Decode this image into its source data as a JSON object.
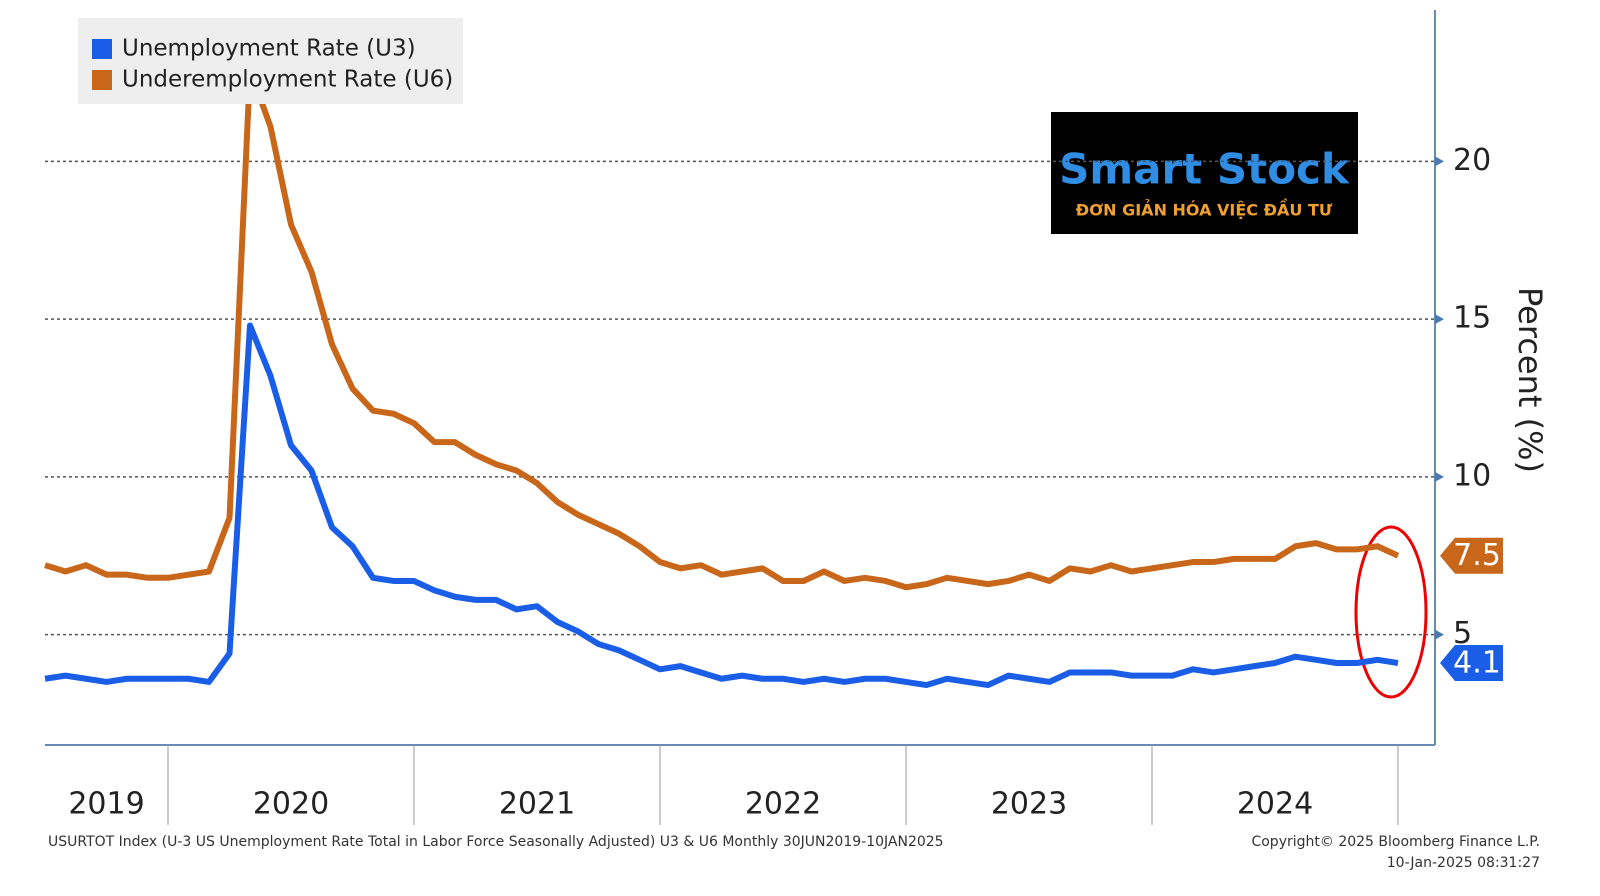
{
  "chart_data": {
    "type": "line",
    "categories": [
      "2019",
      null,
      null,
      null,
      null,
      null,
      null,
      "2020",
      null,
      null,
      null,
      null,
      null,
      null,
      null,
      null,
      null,
      null,
      null,
      "2021",
      null,
      null,
      null,
      null,
      null,
      null,
      null,
      null,
      null,
      null,
      null,
      "2022",
      null,
      null,
      null,
      null,
      null,
      null,
      null,
      null,
      null,
      null,
      null,
      "2023",
      null,
      null,
      null,
      null,
      null,
      null,
      null,
      null,
      null,
      null,
      null,
      "2024",
      null,
      null,
      null,
      null,
      null,
      null,
      null,
      null,
      null,
      null,
      null
    ],
    "series": [
      {
        "name": "Unemployment Rate (U3)",
        "color": "#1a5ee8",
        "values": [
          3.6,
          3.7,
          3.6,
          3.5,
          3.6,
          3.6,
          3.6,
          3.6,
          3.5,
          4.4,
          14.8,
          13.2,
          11.0,
          10.2,
          8.4,
          7.8,
          6.8,
          6.7,
          6.7,
          6.4,
          6.2,
          6.1,
          6.1,
          5.8,
          5.9,
          5.4,
          5.1,
          4.7,
          4.5,
          4.2,
          3.9,
          4.0,
          3.8,
          3.6,
          3.7,
          3.6,
          3.6,
          3.5,
          3.6,
          3.5,
          3.6,
          3.6,
          3.5,
          3.4,
          3.6,
          3.5,
          3.4,
          3.7,
          3.6,
          3.5,
          3.8,
          3.8,
          3.8,
          3.7,
          3.7,
          3.7,
          3.9,
          3.8,
          3.9,
          4.0,
          4.1,
          4.3,
          4.2,
          4.1,
          4.1,
          4.2,
          4.1
        ]
      },
      {
        "name": "Underemployment Rate (U6)",
        "color": "#c8661a",
        "values": [
          7.2,
          7.0,
          7.2,
          6.9,
          6.9,
          6.8,
          6.8,
          6.9,
          7.0,
          8.7,
          22.9,
          21.1,
          18.0,
          16.5,
          14.2,
          12.8,
          12.1,
          12.0,
          11.7,
          11.1,
          11.1,
          10.7,
          10.4,
          10.2,
          9.8,
          9.2,
          8.8,
          8.5,
          8.2,
          7.8,
          7.3,
          7.1,
          7.2,
          6.9,
          7.0,
          7.1,
          6.7,
          6.7,
          7.0,
          6.7,
          6.8,
          6.7,
          6.5,
          6.6,
          6.8,
          6.7,
          6.6,
          6.7,
          6.9,
          6.7,
          7.1,
          7.0,
          7.2,
          7.0,
          7.1,
          7.2,
          7.3,
          7.3,
          7.4,
          7.4,
          7.4,
          7.8,
          7.9,
          7.7,
          7.7,
          7.8,
          7.5
        ]
      }
    ],
    "ylabel": "Percent (%)",
    "ylim": [
      1.5,
      24.8
    ],
    "yticks": [
      5,
      10,
      15,
      20
    ],
    "grid": true,
    "legend": "top-left",
    "footer_left": "USURTOT Index (U-3 US Unemployment Rate Total in Labor Force Seasonally Adjusted) U3 & U6  Monthly 30JUN2019-10JAN2025",
    "footer_right": [
      "Copyright© 2025 Bloomberg Finance L.P.",
      "10-Jan-2025 08:31:27"
    ],
    "watermark": {
      "brand": "Smart Stock",
      "tagline": "ĐƠN GIẢN HÓA VIỆC ĐẦU TƯ"
    }
  }
}
